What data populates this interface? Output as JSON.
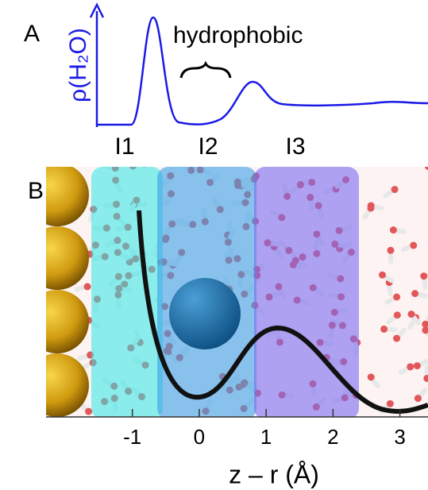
{
  "panel_a": {
    "label": "A",
    "ylabel": "ρ(H₂O)",
    "annotation": "hydrophobic",
    "regions": [
      "I1",
      "I2",
      "I3"
    ]
  },
  "panel_b": {
    "label": "B",
    "xlabel": "z – r (Å)",
    "xlim": [
      -2.29,
      3.42
    ],
    "xticks": [
      -1,
      0,
      1,
      2,
      3
    ]
  }
}
